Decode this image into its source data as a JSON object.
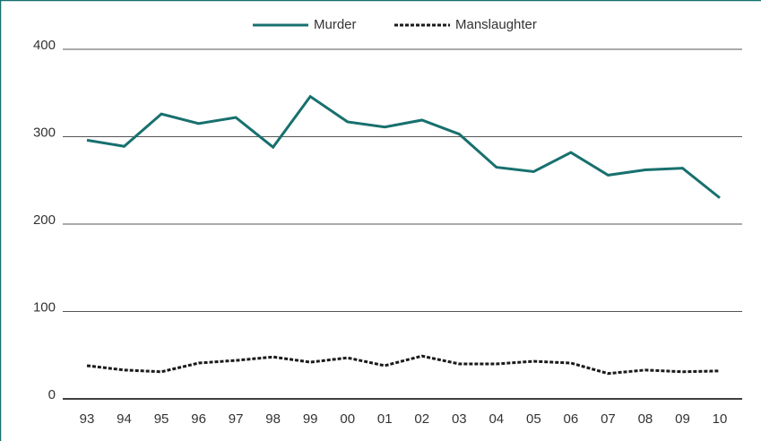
{
  "chart_data": {
    "type": "line",
    "categories": [
      "93",
      "94",
      "95",
      "96",
      "97",
      "98",
      "99",
      "00",
      "01",
      "02",
      "03",
      "04",
      "05",
      "06",
      "07",
      "08",
      "09",
      "10"
    ],
    "series": [
      {
        "name": "Murder",
        "color": "#17706e",
        "dash": "solid",
        "values": [
          296,
          289,
          326,
          315,
          322,
          288,
          346,
          317,
          311,
          319,
          303,
          265,
          260,
          282,
          256,
          262,
          264,
          230
        ]
      },
      {
        "name": "Manslaughter",
        "color": "#1a1a1a",
        "dash": "dashed",
        "values": [
          38,
          33,
          31,
          41,
          44,
          48,
          42,
          47,
          38,
          49,
          40,
          40,
          43,
          41,
          29,
          33,
          31,
          32
        ]
      }
    ],
    "ylim": [
      0,
      400
    ],
    "yticks": [
      0,
      100,
      200,
      300,
      400
    ],
    "grid": true,
    "legend": "top"
  }
}
